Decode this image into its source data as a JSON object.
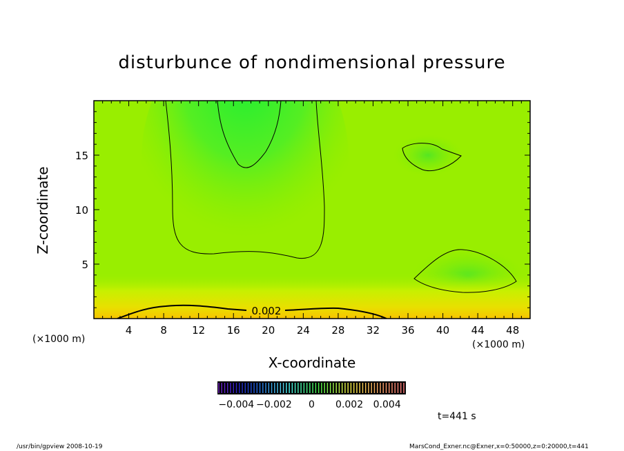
{
  "chart_data": {
    "type": "heatmap",
    "title": "disturbunce of nondimensional pressure",
    "xlabel": "X-coordinate",
    "ylabel": "Z-coordinate",
    "xlim": [
      0,
      50
    ],
    "ylim": [
      0,
      20
    ],
    "x_ticks": [
      4,
      8,
      12,
      16,
      20,
      24,
      28,
      32,
      36,
      40,
      44,
      48
    ],
    "y_ticks": [
      5,
      10,
      15
    ],
    "x_unit": "(×1000 m)",
    "contour_label": "0.002",
    "colorbar": {
      "min": -0.005,
      "max": 0.005,
      "tick_labels": [
        "−0.004",
        "−0.002",
        "0",
        "0.002",
        "0.004"
      ],
      "tick_values": [
        -0.004,
        -0.002,
        0,
        0.002,
        0.004
      ]
    }
  },
  "time_label": "t=441 s",
  "footer": {
    "left": "/usr/bin/gpview   2008-10-19",
    "right": "MarsCond_Exner.nc@Exner,x=0:50000,z=0:20000,t=441"
  }
}
